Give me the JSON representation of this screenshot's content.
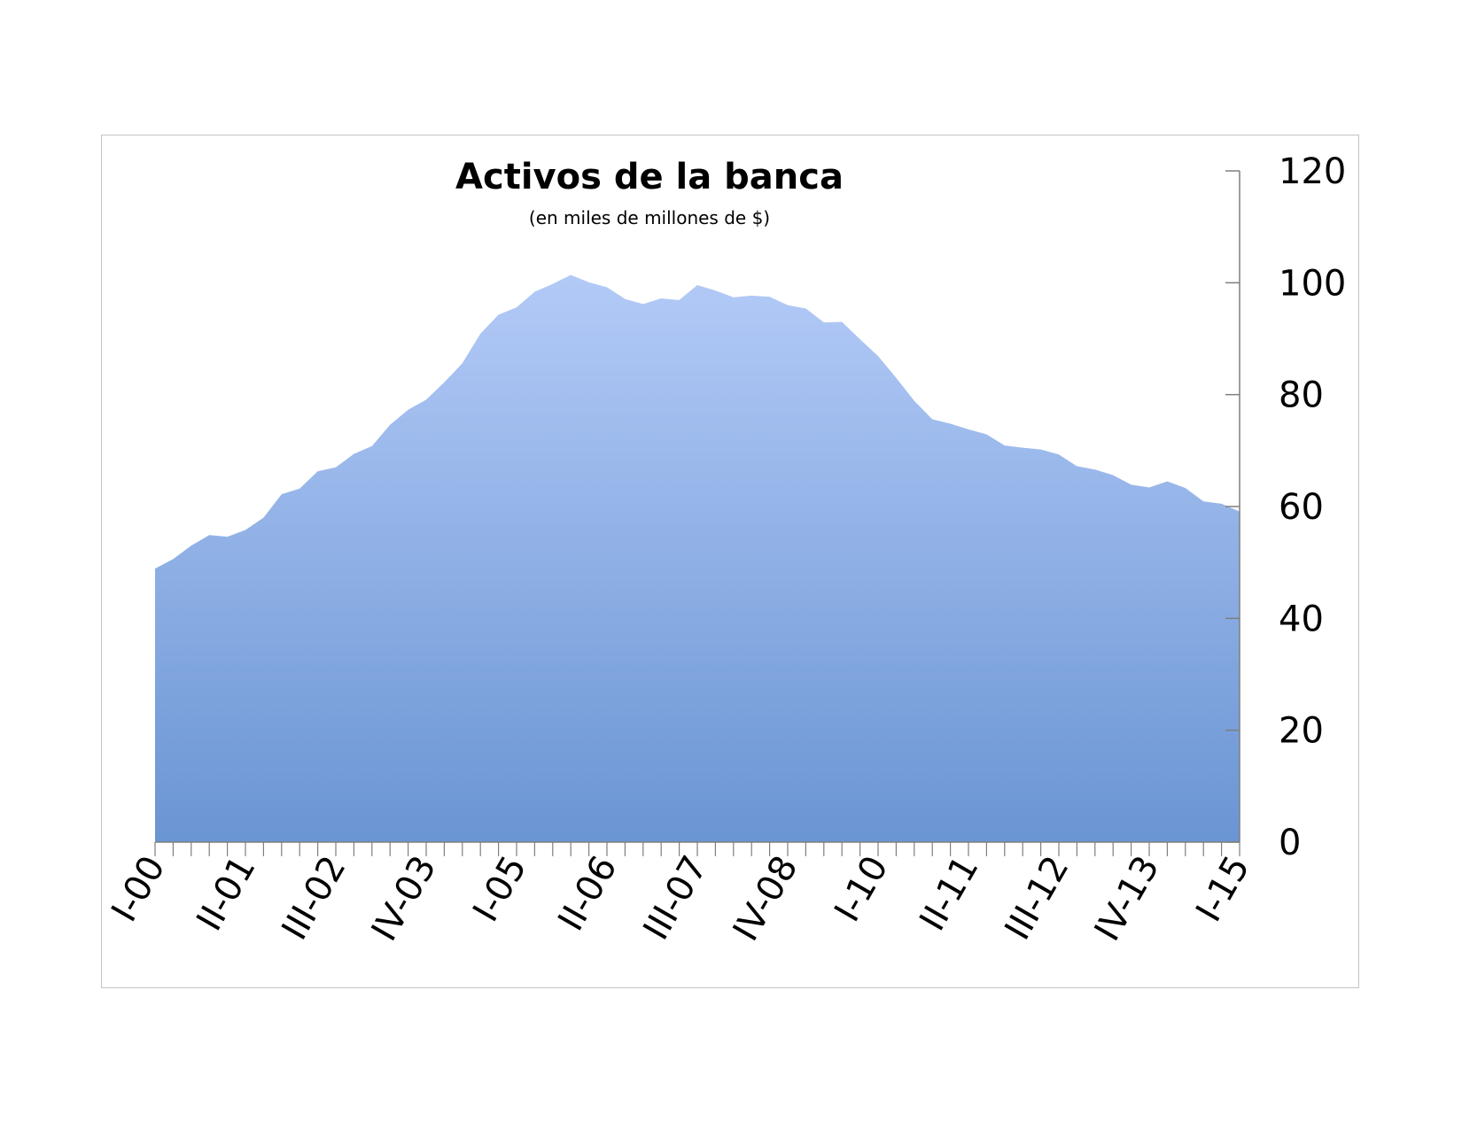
{
  "chart_data": {
    "type": "area",
    "title": "Activos de la banca",
    "subtitle": "(en miles de millones de $)",
    "xlabel": "",
    "ylabel": "",
    "ylim": [
      0,
      120
    ],
    "yticks": [
      0,
      20,
      40,
      60,
      80,
      100,
      120
    ],
    "y_axis_position": "right",
    "grid": false,
    "legend": "none",
    "x_tick_labels": [
      "I-00",
      "II-01",
      "III-02",
      "IV-03",
      "I-05",
      "II-06",
      "III-07",
      "IV-08",
      "I-10",
      "II-11",
      "III-12",
      "IV-13",
      "I-15"
    ],
    "x_tick_label_indices": [
      0,
      5,
      10,
      15,
      20,
      25,
      30,
      35,
      40,
      45,
      50,
      55,
      60
    ],
    "series": [
      {
        "values": [
          48.9,
          50.6,
          53.0,
          54.9,
          54.6,
          55.8,
          58.0,
          62.2,
          63.2,
          66.3,
          67.0,
          69.4,
          70.8,
          74.6,
          77.3,
          79.1,
          82.2,
          85.6,
          90.9,
          94.3,
          95.6,
          98.4,
          99.8,
          101.4,
          100.1,
          99.2,
          97.1,
          96.2,
          97.2,
          96.9,
          99.6,
          98.6,
          97.4,
          97.7,
          97.5,
          96.0,
          95.4,
          92.9,
          93.0,
          89.9,
          86.9,
          83.0,
          78.9,
          75.6,
          74.8,
          73.8,
          72.9,
          70.9,
          70.5,
          70.2,
          69.3,
          67.2,
          66.6,
          65.6,
          63.9,
          63.4,
          64.5,
          63.3,
          60.9,
          60.5,
          59.1
        ]
      }
    ],
    "colors": {
      "fill_top": "#b3caf7",
      "fill_bottom": "#6a95d3",
      "axis": "#7f7f7f",
      "frame": "#c4c4c4"
    }
  }
}
